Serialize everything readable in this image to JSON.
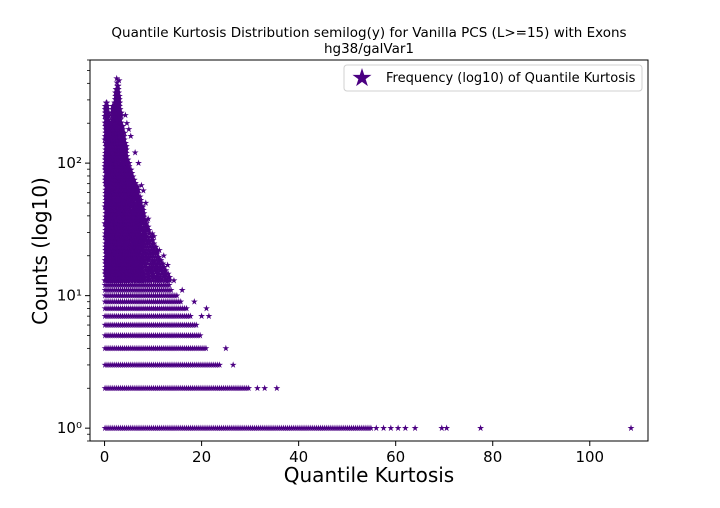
{
  "chart_data": {
    "type": "scatter",
    "title": "Quantile Kurtosis Distribution semilog(y) for Vanilla PCS (L>=15) with Exons",
    "subtitle": "hg38/galVar1",
    "xlabel": "Quantile Kurtosis",
    "ylabel": "Counts (log10)",
    "xlim": [
      -3,
      112
    ],
    "ylim": [
      0.8,
      600
    ],
    "yscale": "log",
    "xticks": [
      0,
      20,
      40,
      60,
      80,
      100
    ],
    "yticks": [
      1,
      10,
      100
    ],
    "ytick_labels": [
      "10⁰",
      "10¹",
      "10²"
    ],
    "grid": false,
    "legend": "top-right",
    "marker": "star",
    "color": "#4b0082",
    "series": [
      {
        "name": "Frequency (log10) of Quantile Kurtosis",
        "bands": [
          {
            "y": 1,
            "x_range": [
              0.1,
              55
            ],
            "outliers": [
              56,
              57.5,
              59,
              60.5,
              62,
              64,
              69.5,
              70.5,
              77.5,
              108.5
            ]
          },
          {
            "y": 2,
            "x_range": [
              0.1,
              30
            ],
            "outliers": [
              31.5,
              33,
              35.5
            ]
          },
          {
            "y": 3,
            "x_range": [
              0.1,
              24
            ],
            "outliers": [
              26.5
            ]
          },
          {
            "y": 4,
            "x_range": [
              0.1,
              21
            ],
            "outliers": [
              25
            ]
          },
          {
            "y": 5,
            "x_range": [
              0.1,
              20
            ],
            "outliers": []
          },
          {
            "y": 6,
            "x_range": [
              0.1,
              19
            ],
            "outliers": []
          },
          {
            "y": 7,
            "x_range": [
              0.1,
              18
            ],
            "outliers": [
              21.5
            ]
          },
          {
            "y": 8,
            "x_range": [
              0.1,
              17
            ],
            "outliers": []
          },
          {
            "y": 9,
            "x_range": [
              0.1,
              16
            ],
            "outliers": []
          },
          {
            "y": 10,
            "x_range": [
              0.1,
              15
            ],
            "outliers": []
          },
          {
            "y": 11,
            "x_range": [
              0.1,
              14
            ],
            "outliers": []
          },
          {
            "y": 12,
            "x_range": [
              0.1,
              13.5
            ],
            "outliers": []
          }
        ],
        "peak": [
          [
            0.2,
            280
          ],
          [
            0.5,
            300
          ],
          [
            0.8,
            240
          ],
          [
            1.1,
            200
          ],
          [
            1.4,
            170
          ],
          [
            1.7,
            260
          ],
          [
            2.0,
            300
          ],
          [
            2.3,
            360
          ],
          [
            2.6,
            410
          ],
          [
            2.8,
            380
          ],
          [
            3.1,
            300
          ],
          [
            3.4,
            230
          ],
          [
            3.8,
            180
          ],
          [
            4.2,
            150
          ],
          [
            4.6,
            120
          ],
          [
            5.0,
            100
          ],
          [
            5.5,
            90
          ],
          [
            6.0,
            80
          ],
          [
            6.5,
            70
          ],
          [
            7.0,
            60
          ],
          [
            7.5,
            52
          ],
          [
            8.0,
            45
          ],
          [
            9.0,
            35
          ],
          [
            10.0,
            27
          ],
          [
            11.0,
            22
          ],
          [
            12.0,
            18
          ],
          [
            13.0,
            15
          ],
          [
            14.5,
            12
          ]
        ],
        "upper_outliers": [
          [
            1.0,
            165
          ],
          [
            2.5,
            435
          ],
          [
            3.0,
            420
          ],
          [
            4.3,
            230
          ],
          [
            4.6,
            200
          ],
          [
            5.0,
            180
          ],
          [
            5.4,
            160
          ],
          [
            6.3,
            120
          ],
          [
            7.0,
            100
          ],
          [
            7.6,
            68
          ],
          [
            8.0,
            62
          ],
          [
            8.5,
            50
          ],
          [
            9.0,
            38
          ],
          [
            10.2,
            28
          ],
          [
            11.3,
            22
          ],
          [
            12.2,
            20
          ],
          [
            13.0,
            17
          ],
          [
            14.3,
            13
          ],
          [
            16.0,
            11
          ],
          [
            18.5,
            9
          ],
          [
            20.0,
            7
          ],
          [
            21.0,
            8
          ]
        ]
      }
    ]
  }
}
